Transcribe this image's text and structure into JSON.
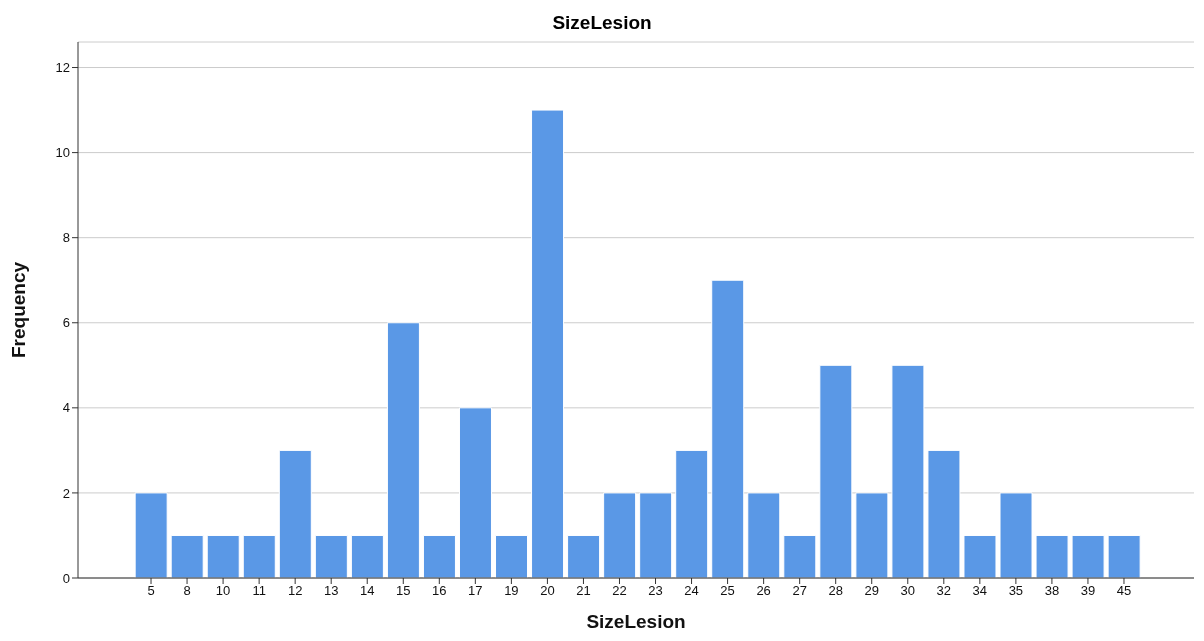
{
  "chart_data": {
    "type": "bar",
    "title": "SizeLesion",
    "xlabel": "SizeLesion",
    "ylabel": "Frequency",
    "categories": [
      "5",
      "8",
      "10",
      "11",
      "12",
      "13",
      "14",
      "15",
      "16",
      "17",
      "19",
      "20",
      "21",
      "22",
      "23",
      "24",
      "25",
      "26",
      "27",
      "28",
      "29",
      "30",
      "32",
      "34",
      "35",
      "38",
      "39",
      "45"
    ],
    "values": [
      2,
      1,
      1,
      1,
      3,
      1,
      1,
      6,
      1,
      4,
      1,
      11,
      1,
      2,
      2,
      3,
      7,
      2,
      1,
      5,
      2,
      5,
      3,
      1,
      2,
      1,
      1,
      1
    ],
    "color": "#5a98e6",
    "ylim": [
      0,
      12.6
    ],
    "yticks": [
      0,
      2,
      4,
      6,
      8,
      10,
      12
    ],
    "grid": "y"
  }
}
